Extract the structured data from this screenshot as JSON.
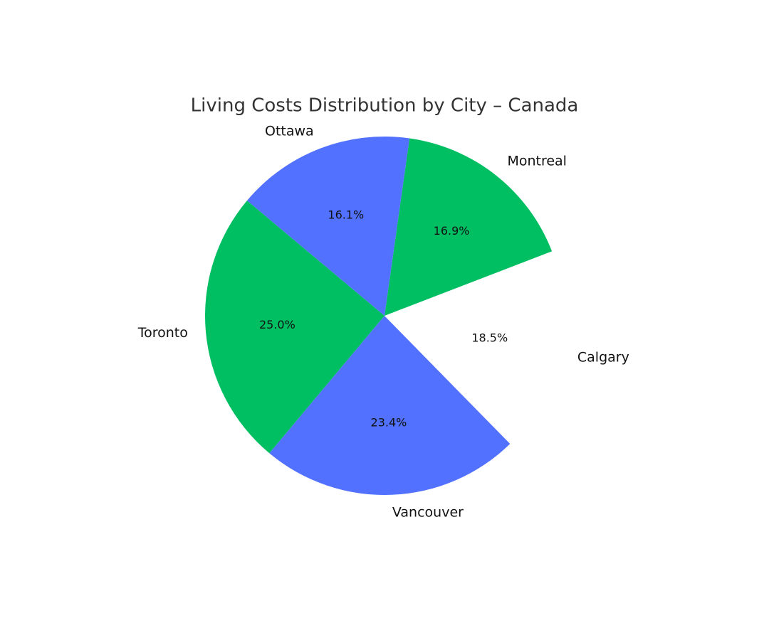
{
  "chart_data": {
    "type": "pie",
    "title": "Living Costs Distribution by City – Canada",
    "categories": [
      "Toronto",
      "Vancouver",
      "Calgary",
      "Montreal",
      "Ottawa"
    ],
    "values": [
      25.0,
      23.4,
      18.5,
      16.9,
      16.1
    ],
    "value_labels": [
      "25.0%",
      "23.4%",
      "18.5%",
      "16.9%",
      "16.1%"
    ],
    "colors": [
      "#00bf63",
      "#5271ff",
      "#ffffff",
      "#00bf63",
      "#5271ff"
    ]
  }
}
